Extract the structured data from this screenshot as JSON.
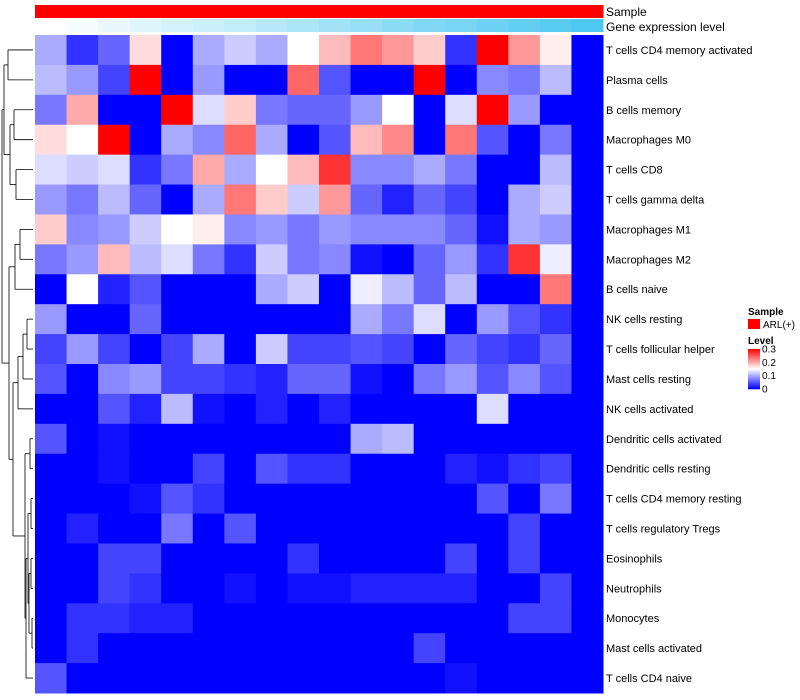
{
  "chart_data": {
    "type": "heatmap",
    "title": "",
    "annotations": [
      {
        "name": "Sample",
        "label": "Sample"
      },
      {
        "name": "Gene expression level",
        "label": "Gene expression level"
      }
    ],
    "rows": [
      "T cells CD4 memory activated",
      "Plasma cells",
      "B cells memory",
      "Macrophages M0",
      "T cells CD8",
      "T cells gamma delta",
      "Macrophages M1",
      "Macrophages M2",
      "B cells naive",
      "NK cells resting",
      "T cells follicular helper",
      "Mast cells resting",
      "NK cells activated",
      "Dendritic cells activated",
      "Dendritic cells resting",
      "T cells CD4 memory resting",
      "T cells regulatory  Tregs",
      "Eosinophils",
      "Neutrophils",
      "Monocytes",
      "Mast cells activated",
      "T cells CD4 naive"
    ],
    "columns": 18,
    "values": [
      [
        0.1,
        0.03,
        0.06,
        0.17,
        0.0,
        0.1,
        0.12,
        0.1,
        0.15,
        0.19,
        0.23,
        0.21,
        0.18,
        0.03,
        0.3,
        0.21,
        0.16,
        0.0
      ],
      [
        0.11,
        0.09,
        0.04,
        0.3,
        0.0,
        0.09,
        0.0,
        0.0,
        0.24,
        0.05,
        0.0,
        0.0,
        0.3,
        0.0,
        0.08,
        0.07,
        0.11,
        0.0
      ],
      [
        0.07,
        0.2,
        0.0,
        0.0,
        0.3,
        0.13,
        0.18,
        0.07,
        0.06,
        0.06,
        0.09,
        0.15,
        0.0,
        0.13,
        0.3,
        0.09,
        0.0,
        0.0
      ],
      [
        0.17,
        0.15,
        0.3,
        0.0,
        0.1,
        0.08,
        0.24,
        0.1,
        0.0,
        0.05,
        0.19,
        0.22,
        0.0,
        0.23,
        0.05,
        0.0,
        0.07,
        0.0
      ],
      [
        0.13,
        0.12,
        0.13,
        0.03,
        0.07,
        0.2,
        0.1,
        0.15,
        0.19,
        0.27,
        0.08,
        0.08,
        0.1,
        0.07,
        0.0,
        0.0,
        0.11,
        0.0
      ],
      [
        0.09,
        0.07,
        0.11,
        0.06,
        0.0,
        0.1,
        0.23,
        0.18,
        0.12,
        0.21,
        0.06,
        0.02,
        0.06,
        0.04,
        0.0,
        0.1,
        0.12,
        0.0
      ],
      [
        0.18,
        0.08,
        0.09,
        0.12,
        0.15,
        0.16,
        0.08,
        0.09,
        0.07,
        0.09,
        0.08,
        0.08,
        0.08,
        0.06,
        0.01,
        0.1,
        0.09,
        0.0
      ],
      [
        0.07,
        0.09,
        0.19,
        0.11,
        0.13,
        0.07,
        0.03,
        0.12,
        0.07,
        0.08,
        0.01,
        0.0,
        0.06,
        0.09,
        0.03,
        0.27,
        0.14,
        0.0
      ],
      [
        0.0,
        0.15,
        0.02,
        0.05,
        0.0,
        0.0,
        0.0,
        0.1,
        0.12,
        0.0,
        0.14,
        0.11,
        0.06,
        0.11,
        0.0,
        0.0,
        0.23,
        0.0
      ],
      [
        0.09,
        0.0,
        0.0,
        0.06,
        0.0,
        0.0,
        0.0,
        0.0,
        0.0,
        0.0,
        0.1,
        0.07,
        0.13,
        0.0,
        0.09,
        0.05,
        0.03,
        0.0
      ],
      [
        0.04,
        0.09,
        0.04,
        0.0,
        0.04,
        0.1,
        0.0,
        0.12,
        0.04,
        0.04,
        0.05,
        0.04,
        0.0,
        0.06,
        0.04,
        0.03,
        0.06,
        0.0
      ],
      [
        0.05,
        0.0,
        0.08,
        0.09,
        0.04,
        0.04,
        0.03,
        0.02,
        0.06,
        0.06,
        0.01,
        0.0,
        0.07,
        0.09,
        0.05,
        0.08,
        0.05,
        0.0
      ],
      [
        0.0,
        0.0,
        0.05,
        0.02,
        0.11,
        0.01,
        0.0,
        0.02,
        0.0,
        0.02,
        0.0,
        0.0,
        0.0,
        0.0,
        0.13,
        0.0,
        0.0,
        0.0
      ],
      [
        0.05,
        0.0,
        0.01,
        0.0,
        0.0,
        0.0,
        0.0,
        0.0,
        0.0,
        0.0,
        0.1,
        0.11,
        0.0,
        0.0,
        0.0,
        0.0,
        0.0,
        0.0
      ],
      [
        0.0,
        0.0,
        0.01,
        0.0,
        0.0,
        0.04,
        0.0,
        0.05,
        0.03,
        0.03,
        0.0,
        0.0,
        0.0,
        0.02,
        0.01,
        0.03,
        0.04,
        0.0
      ],
      [
        0.0,
        0.0,
        0.0,
        0.01,
        0.05,
        0.03,
        0.0,
        0.0,
        0.0,
        0.0,
        0.0,
        0.0,
        0.0,
        0.0,
        0.05,
        0.0,
        0.07,
        0.0
      ],
      [
        0.0,
        0.02,
        0.0,
        0.0,
        0.07,
        0.0,
        0.05,
        0.0,
        0.0,
        0.0,
        0.0,
        0.0,
        0.0,
        0.0,
        0.0,
        0.04,
        0.0,
        0.0
      ],
      [
        0.0,
        0.0,
        0.04,
        0.04,
        0.0,
        0.0,
        0.0,
        0.0,
        0.03,
        0.0,
        0.0,
        0.0,
        0.0,
        0.04,
        0.0,
        0.04,
        0.0,
        0.0
      ],
      [
        0.0,
        0.0,
        0.04,
        0.03,
        0.0,
        0.0,
        0.01,
        0.0,
        0.01,
        0.01,
        0.02,
        0.02,
        0.02,
        0.02,
        0.0,
        0.0,
        0.04,
        0.0
      ],
      [
        0.0,
        0.03,
        0.03,
        0.02,
        0.02,
        0.0,
        0.0,
        0.0,
        0.0,
        0.0,
        0.0,
        0.0,
        0.0,
        0.0,
        0.0,
        0.04,
        0.04,
        0.0
      ],
      [
        0.0,
        0.03,
        0.0,
        0.0,
        0.0,
        0.0,
        0.0,
        0.0,
        0.0,
        0.0,
        0.0,
        0.0,
        0.04,
        0.0,
        0.0,
        0.0,
        0.0,
        0.0
      ],
      [
        0.05,
        0.0,
        0.0,
        0.0,
        0.0,
        0.0,
        0.0,
        0.0,
        0.0,
        0.0,
        0.0,
        0.0,
        0.0,
        0.01,
        0.0,
        0.0,
        0.0,
        0.0
      ]
    ],
    "sample_annotation": [
      "ARL(+)",
      "ARL(+)",
      "ARL(+)",
      "ARL(+)",
      "ARL(+)",
      "ARL(+)",
      "ARL(+)",
      "ARL(+)",
      "ARL(+)",
      "ARL(+)",
      "ARL(+)",
      "ARL(+)",
      "ARL(+)",
      "ARL(+)",
      "ARL(+)",
      "ARL(+)",
      "ARL(+)",
      "ARL(+)"
    ],
    "expression_level": [
      0.0,
      0.06,
      0.12,
      0.18,
      0.24,
      0.29,
      0.35,
      0.41,
      0.47,
      0.53,
      0.59,
      0.65,
      0.71,
      0.76,
      0.82,
      0.88,
      0.94,
      1.0
    ],
    "legend": {
      "sample_title": "Sample",
      "sample_entry": "ARL(+)",
      "sample_color": "#FF0000",
      "level_title": "Level",
      "level_ticks": [
        "0.3",
        "0.2",
        "0.1",
        "0"
      ],
      "level_tick_values": [
        0.3,
        0.2,
        0.1,
        0
      ],
      "range": [
        0,
        0.3
      ],
      "color_low": "#0000FF",
      "color_mid": "#FFFFFF",
      "color_high": "#FF0000",
      "expr_low": "#FFFFFF",
      "expr_high": "#4DC8F0"
    }
  }
}
